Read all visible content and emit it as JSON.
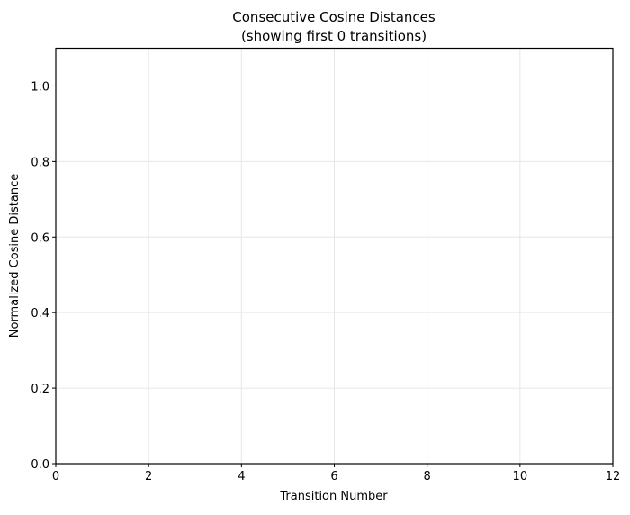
{
  "chart_data": {
    "type": "line",
    "title": "Consecutive Cosine Distances",
    "subtitle": "(showing first 0 transitions)",
    "xlabel": "Transition Number",
    "ylabel": "Normalized Cosine Distance",
    "xlim": [
      0,
      12
    ],
    "ylim": [
      0,
      1.1
    ],
    "xticks": [
      0,
      2,
      4,
      6,
      8,
      10,
      12
    ],
    "yticks": [
      0.0,
      0.2,
      0.4,
      0.6,
      0.8,
      1.0
    ],
    "xtick_labels": [
      "0",
      "2",
      "4",
      "6",
      "8",
      "10",
      "12"
    ],
    "ytick_labels": [
      "0.0",
      "0.2",
      "0.4",
      "0.6",
      "0.8",
      "1.0"
    ],
    "grid": true,
    "grid_color": "#e6e6e6",
    "series": [
      {
        "x": [],
        "y": []
      }
    ]
  }
}
